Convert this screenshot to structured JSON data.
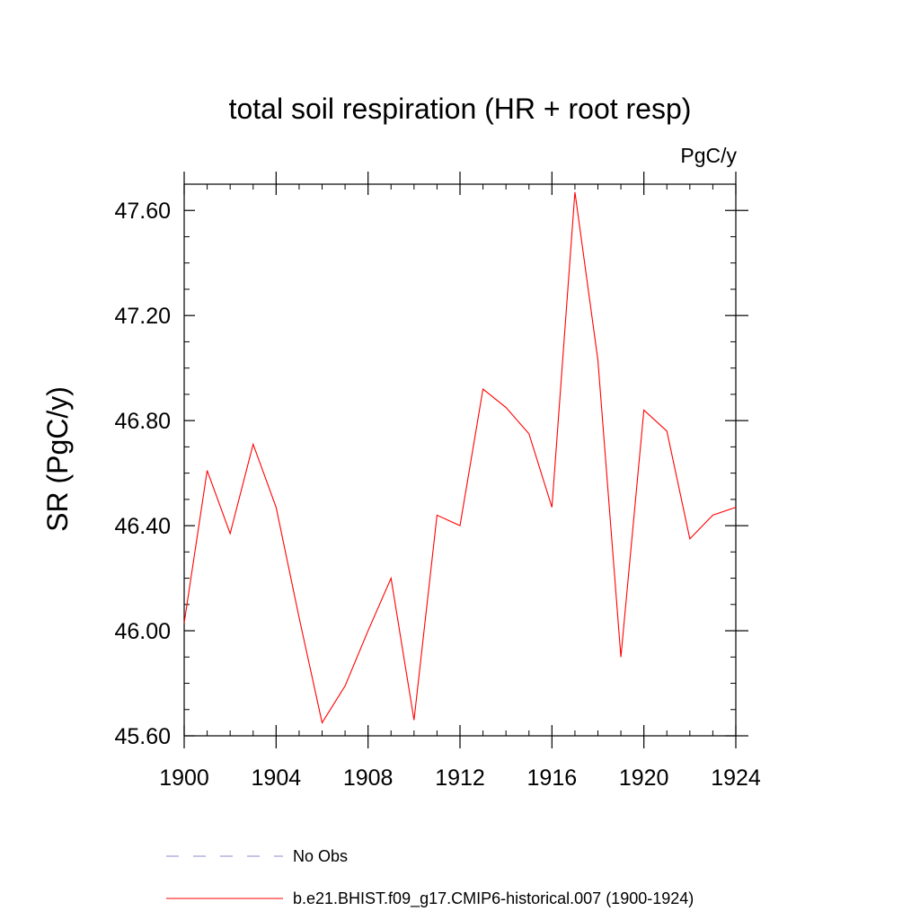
{
  "chart_data": {
    "type": "line",
    "title": "total soil respiration (HR + root resp)",
    "units": "PgC/y",
    "ylabel": "SR  (PgC/y)",
    "xlabel": "",
    "xlim": [
      1900,
      1924
    ],
    "ylim": [
      45.6,
      47.7
    ],
    "x_ticks": [
      1900,
      1904,
      1908,
      1912,
      1916,
      1920,
      1924
    ],
    "x_tick_labels": [
      "1900",
      "1904",
      "1908",
      "1912",
      "1916",
      "1920",
      "1924"
    ],
    "y_ticks": [
      45.6,
      46.0,
      46.4,
      46.8,
      47.2,
      47.6
    ],
    "y_tick_labels": [
      "45.60",
      "46.00",
      "46.40",
      "46.80",
      "47.20",
      "47.60"
    ],
    "grid": false,
    "legend_position": "bottom",
    "series": [
      {
        "name": "b.e21.BHIST.f09_g17.CMIP6-historical.007 (1900-1924)",
        "color": "#ff0000",
        "style": "solid",
        "x": [
          1900,
          1901,
          1902,
          1903,
          1904,
          1905,
          1906,
          1907,
          1908,
          1909,
          1910,
          1911,
          1912,
          1913,
          1914,
          1915,
          1916,
          1917,
          1918,
          1919,
          1920,
          1921,
          1922,
          1923,
          1924
        ],
        "values": [
          46.03,
          46.61,
          46.37,
          46.71,
          46.47,
          46.05,
          45.65,
          45.79,
          46.0,
          46.2,
          45.66,
          46.44,
          46.4,
          46.92,
          46.85,
          46.75,
          46.47,
          47.67,
          47.03,
          45.9,
          46.84,
          46.76,
          46.35,
          46.44,
          46.47
        ]
      },
      {
        "name": "No Obs",
        "color": "#8888cc",
        "style": "dashed",
        "x": [],
        "values": []
      }
    ]
  }
}
